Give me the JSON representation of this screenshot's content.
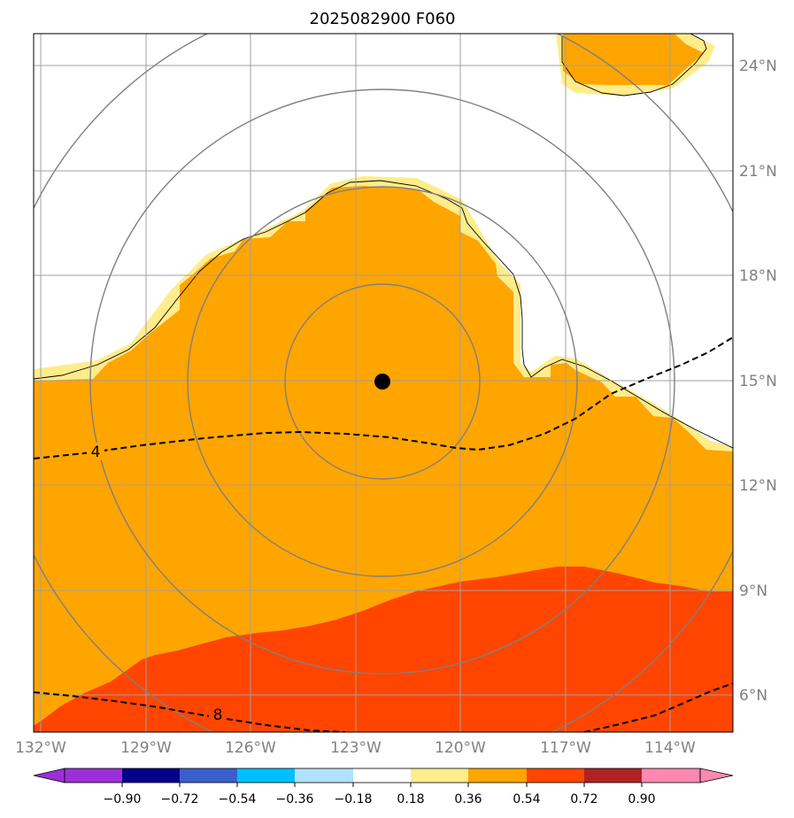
{
  "title": "2025082900 F060",
  "x_ticks": [
    "132°W",
    "129°W",
    "126°W",
    "123°W",
    "120°W",
    "117°W",
    "114°W"
  ],
  "y_ticks": [
    "24°N",
    "21°N",
    "18°N",
    "15°N",
    "12°N",
    "9°N",
    "6°N"
  ],
  "contour_labels": [
    "4",
    "8"
  ],
  "storm_center": {
    "lat": 15.0,
    "lon": -122.0
  },
  "range_rings_deg": [
    2.75,
    5.5,
    8.25,
    11.0
  ],
  "colorbar": {
    "ticks": [
      "−0.90",
      "−0.72",
      "−0.54",
      "−0.36",
      "−0.18",
      "0.18",
      "0.36",
      "0.54",
      "0.72",
      "0.90"
    ],
    "colors": [
      "#9b30d9",
      "#00008b",
      "#3a5fcd",
      "#00bfff",
      "#b0e2ff",
      "#ffffff",
      "#ffec8b",
      "#ffa500",
      "#ff4500",
      "#b22222",
      "#ff88b0"
    ]
  },
  "map_colors": {
    "light": "#ffec8b",
    "orange": "#ffa500",
    "red": "#ff4500",
    "grid": "#a0a0a0",
    "ring": "#808080"
  }
}
